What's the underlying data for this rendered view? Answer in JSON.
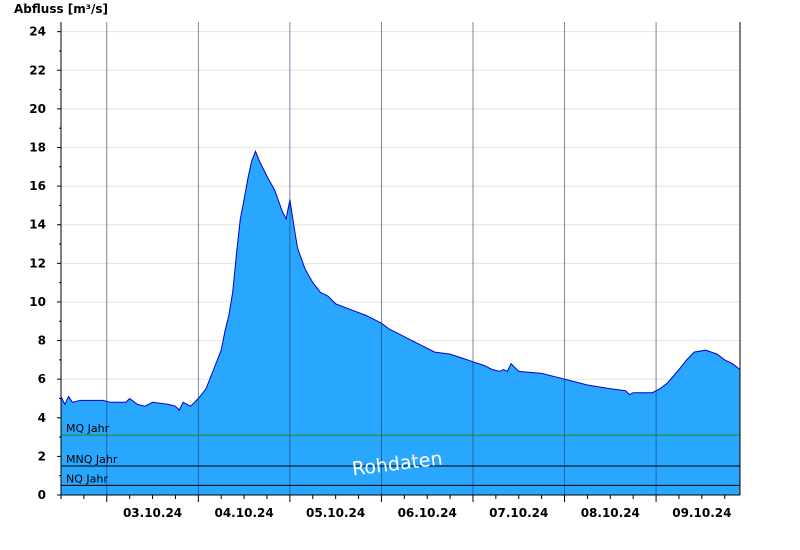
{
  "chart_data": {
    "type": "area",
    "ylabel": "Abfluss [m³/s]",
    "ylim": [
      0,
      24.5
    ],
    "y_ticks": [
      0,
      2,
      4,
      6,
      8,
      10,
      12,
      14,
      16,
      18,
      20,
      22,
      24
    ],
    "grid": "horizontal",
    "x_range": [
      "2024-10-02T12:00",
      "2024-10-09T22:00"
    ],
    "x_tick_labels": [
      "03.10.24",
      "04.10.24",
      "05.10.24",
      "06.10.24",
      "07.10.24",
      "08.10.24",
      "09.10.24"
    ],
    "series": [
      {
        "fill_color": "#29a7ff",
        "line_color": "#0000cc",
        "points": [
          [
            "2024-10-02T12:00",
            5.1
          ],
          [
            "2024-10-02T13:00",
            4.7
          ],
          [
            "2024-10-02T14:00",
            5.1
          ],
          [
            "2024-10-02T15:00",
            4.8
          ],
          [
            "2024-10-02T17:00",
            4.9
          ],
          [
            "2024-10-02T23:00",
            4.9
          ],
          [
            "2024-10-03T01:00",
            4.8
          ],
          [
            "2024-10-03T05:00",
            4.8
          ],
          [
            "2024-10-03T06:00",
            5.0
          ],
          [
            "2024-10-03T08:00",
            4.7
          ],
          [
            "2024-10-03T10:00",
            4.6
          ],
          [
            "2024-10-03T12:00",
            4.8
          ],
          [
            "2024-10-03T16:00",
            4.7
          ],
          [
            "2024-10-03T18:00",
            4.6
          ],
          [
            "2024-10-03T19:00",
            4.4
          ],
          [
            "2024-10-03T20:00",
            4.8
          ],
          [
            "2024-10-03T22:00",
            4.6
          ],
          [
            "2024-10-04T00:00",
            5.0
          ],
          [
            "2024-10-04T02:00",
            5.5
          ],
          [
            "2024-10-04T04:00",
            6.5
          ],
          [
            "2024-10-04T06:00",
            7.5
          ],
          [
            "2024-10-04T07:00",
            8.5
          ],
          [
            "2024-10-04T08:00",
            9.3
          ],
          [
            "2024-10-04T09:00",
            10.5
          ],
          [
            "2024-10-04T10:00",
            12.5
          ],
          [
            "2024-10-04T11:00",
            14.3
          ],
          [
            "2024-10-04T12:00",
            15.3
          ],
          [
            "2024-10-04T13:00",
            16.4
          ],
          [
            "2024-10-04T14:00",
            17.3
          ],
          [
            "2024-10-04T15:00",
            17.8
          ],
          [
            "2024-10-04T16:00",
            17.3
          ],
          [
            "2024-10-04T18:00",
            16.5
          ],
          [
            "2024-10-04T20:00",
            15.8
          ],
          [
            "2024-10-04T22:00",
            14.7
          ],
          [
            "2024-10-04T23:00",
            14.3
          ],
          [
            "2024-10-05T00:00",
            15.3
          ],
          [
            "2024-10-05T01:00",
            14.0
          ],
          [
            "2024-10-05T02:00",
            12.8
          ],
          [
            "2024-10-05T04:00",
            11.7
          ],
          [
            "2024-10-05T06:00",
            11.0
          ],
          [
            "2024-10-05T08:00",
            10.5
          ],
          [
            "2024-10-05T10:00",
            10.3
          ],
          [
            "2024-10-05T12:00",
            9.9
          ],
          [
            "2024-10-05T16:00",
            9.6
          ],
          [
            "2024-10-05T20:00",
            9.3
          ],
          [
            "2024-10-05T22:00",
            9.1
          ],
          [
            "2024-10-06T00:00",
            8.9
          ],
          [
            "2024-10-06T02:00",
            8.6
          ],
          [
            "2024-10-06T04:00",
            8.4
          ],
          [
            "2024-10-06T06:00",
            8.2
          ],
          [
            "2024-10-06T08:00",
            8.0
          ],
          [
            "2024-10-06T10:00",
            7.8
          ],
          [
            "2024-10-06T12:00",
            7.6
          ],
          [
            "2024-10-06T14:00",
            7.4
          ],
          [
            "2024-10-06T18:00",
            7.3
          ],
          [
            "2024-10-06T21:00",
            7.1
          ],
          [
            "2024-10-07T00:00",
            6.9
          ],
          [
            "2024-10-07T03:00",
            6.7
          ],
          [
            "2024-10-07T05:00",
            6.5
          ],
          [
            "2024-10-07T07:00",
            6.4
          ],
          [
            "2024-10-07T08:00",
            6.5
          ],
          [
            "2024-10-07T09:00",
            6.4
          ],
          [
            "2024-10-07T10:00",
            6.8
          ],
          [
            "2024-10-07T11:00",
            6.6
          ],
          [
            "2024-10-07T12:00",
            6.4
          ],
          [
            "2024-10-07T18:00",
            6.3
          ],
          [
            "2024-10-07T22:00",
            6.1
          ],
          [
            "2024-10-08T02:00",
            5.9
          ],
          [
            "2024-10-08T06:00",
            5.7
          ],
          [
            "2024-10-08T12:00",
            5.5
          ],
          [
            "2024-10-08T16:00",
            5.4
          ],
          [
            "2024-10-08T17:00",
            5.2
          ],
          [
            "2024-10-08T18:00",
            5.3
          ],
          [
            "2024-10-08T23:00",
            5.3
          ],
          [
            "2024-10-09T01:00",
            5.5
          ],
          [
            "2024-10-09T03:00",
            5.8
          ],
          [
            "2024-10-09T06:00",
            6.5
          ],
          [
            "2024-10-09T08:00",
            7.0
          ],
          [
            "2024-10-09T10:00",
            7.4
          ],
          [
            "2024-10-09T13:00",
            7.5
          ],
          [
            "2024-10-09T16:00",
            7.3
          ],
          [
            "2024-10-09T18:00",
            7.0
          ],
          [
            "2024-10-09T20:00",
            6.8
          ],
          [
            "2024-10-09T22:00",
            6.5
          ]
        ]
      }
    ],
    "reference_lines": [
      {
        "label": "MQ Jahr",
        "value": 3.1,
        "color": "#1a8c1a"
      },
      {
        "label": "MNQ Jahr",
        "value": 1.5,
        "color": "#000000"
      },
      {
        "label": "NQ Jahr",
        "value": 0.5,
        "color": "#000000"
      }
    ],
    "watermark": "Rohdaten"
  }
}
